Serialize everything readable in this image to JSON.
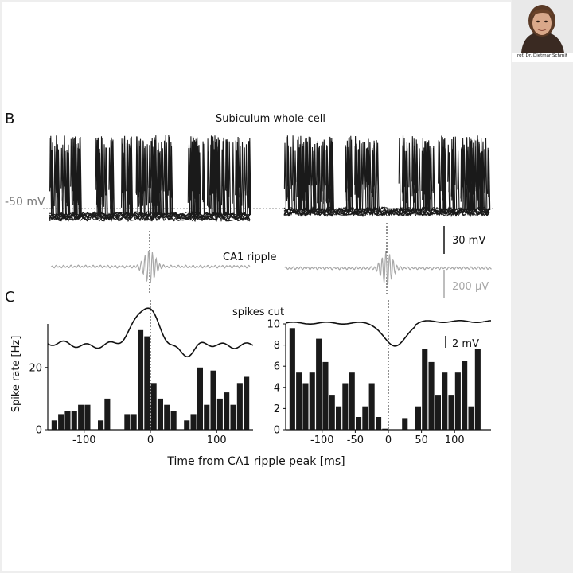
{
  "speaker": {
    "caption": "rof. Dr. Dietmar Schmit"
  },
  "panel_labels": {
    "b": "B",
    "c": "C"
  },
  "traces": {
    "title": "Subiculum whole-cell",
    "vm_label": "-50 mV",
    "scale_mv": "30 mV",
    "ripple_label": "CA1 ripple",
    "scale_uv": "200 µV",
    "trace_color": "#1a1a1a",
    "ripple_color": "#a8a8a8"
  },
  "chart_data": [
    {
      "type": "bar",
      "panel": "C-left",
      "ylabel": "Spike rate [Hz]",
      "ylim": [
        0,
        34
      ],
      "yticks": [
        0,
        20
      ],
      "xlim": [
        -155,
        155
      ],
      "xticks": [
        -100,
        0,
        100
      ],
      "bin_ms": 10,
      "bin_centers": [
        -145,
        -135,
        -125,
        -115,
        -105,
        -95,
        -75,
        -65,
        -35,
        -25,
        -15,
        -5,
        5,
        15,
        25,
        35,
        55,
        65,
        75,
        85,
        95,
        105,
        115,
        125,
        135,
        145
      ],
      "values": [
        3,
        5,
        6,
        6,
        8,
        8,
        3,
        10,
        5,
        5,
        32,
        30,
        15,
        10,
        8,
        6,
        3,
        5,
        20,
        8,
        19,
        10,
        12,
        8,
        15,
        17
      ],
      "overlay": "membrane potential average (depolarization around ripple)"
    },
    {
      "type": "bar",
      "panel": "C-right",
      "annotation": "spikes cut",
      "scale": "2 mV",
      "ylim": [
        0,
        10
      ],
      "yticks": [
        0,
        2,
        4,
        6,
        8,
        10
      ],
      "xlim": [
        -155,
        155
      ],
      "xticks": [
        -100,
        -50,
        0,
        50,
        100
      ],
      "bin_ms": 10,
      "bin_centers": [
        -145,
        -135,
        -125,
        -115,
        -105,
        -95,
        -85,
        -75,
        -65,
        -55,
        -45,
        -35,
        -25,
        -15,
        -5,
        25,
        45,
        55,
        65,
        75,
        85,
        95,
        105,
        115,
        125,
        135
      ],
      "values": [
        9.6,
        5.4,
        4.4,
        5.4,
        8.6,
        6.4,
        3.3,
        2.2,
        4.4,
        5.4,
        1.2,
        2.2,
        4.4,
        1.2,
        0.1,
        1.1,
        2.2,
        7.6,
        6.4,
        3.3,
        5.4,
        3.3,
        5.4,
        6.5,
        2.2,
        7.6
      ],
      "overlay": "membrane potential average (hyperpolarization around ripple)"
    }
  ],
  "xlabel": "Time from CA1 ripple peak [ms]"
}
